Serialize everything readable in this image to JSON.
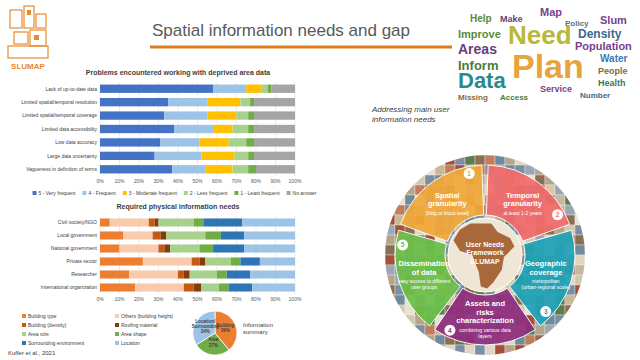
{
  "slide": {
    "title": "Spatial information needs and gap",
    "logo": "SLUMAP",
    "citation": "Kuffer et al., 2021"
  },
  "word_cloud": {
    "words": [
      {
        "text": "Plan",
        "weight": 34,
        "color": "#e8a33d"
      },
      {
        "text": "Need",
        "weight": 26,
        "color": "#b8b83a"
      },
      {
        "text": "Data",
        "weight": 22,
        "color": "#2a8a8a"
      },
      {
        "text": "Population",
        "weight": 11,
        "color": "#7b3f8c"
      },
      {
        "text": "Areas",
        "weight": 14,
        "color": "#6a3d7a"
      },
      {
        "text": "Inform",
        "weight": 13,
        "color": "#4d7a3a"
      },
      {
        "text": "Improve",
        "weight": 11,
        "color": "#5b8a3c"
      },
      {
        "text": "Density",
        "weight": 12,
        "color": "#3a6a8c"
      },
      {
        "text": "Slum",
        "weight": 11,
        "color": "#7b3f8c"
      },
      {
        "text": "Map",
        "weight": 11,
        "color": "#7b3f8c"
      },
      {
        "text": "Water",
        "weight": 10,
        "color": "#3a7ab5"
      },
      {
        "text": "People",
        "weight": 9,
        "color": "#8a6a3a"
      },
      {
        "text": "Health",
        "weight": 9,
        "color": "#3a7a5a"
      },
      {
        "text": "Service",
        "weight": 9,
        "color": "#7b3f8c"
      },
      {
        "text": "Help",
        "weight": 10,
        "color": "#5b8a3c"
      },
      {
        "text": "Make",
        "weight": 9,
        "color": "#6a3d7a"
      },
      {
        "text": "Policy",
        "weight": 8,
        "color": "#4a7a8c"
      },
      {
        "text": "Number",
        "weight": 8,
        "color": "#3a6a8c"
      },
      {
        "text": "Missing",
        "weight": 8,
        "color": "#8a6a3a"
      },
      {
        "text": "Access",
        "weight": 8,
        "color": "#4d7a3a"
      }
    ]
  },
  "framework": {
    "title": "Addressing main user information needs",
    "center": "User Needs Framework SLUMAP",
    "items": [
      {
        "number": 1,
        "label": "Spatial granularity",
        "detail": "(bldg or block level)",
        "color": "#f2a93b"
      },
      {
        "number": 2,
        "label": "Temporal granularity",
        "detail": "at least 1-2 years",
        "color": "#f26b6b"
      },
      {
        "number": 3,
        "label": "Geographic coverage",
        "detail": "metropolitan (urban-regional scale)",
        "color": "#1fa3b7"
      },
      {
        "number": 4,
        "label": "Assets and risks characterization",
        "detail": "combining various data layers",
        "color": "#8e2e7e"
      },
      {
        "number": 5,
        "label": "Dissemination of data",
        "detail": "easy access to different user groups",
        "color": "#6cc04a"
      }
    ]
  },
  "chart_data": [
    {
      "type": "bar",
      "orientation": "horizontal",
      "stacked": true,
      "grid": true,
      "legend": "bottom",
      "title": "Problems encountered working with deprived area data",
      "categories": [
        "Lack of up-to-date data",
        "Limited spatial/temporal resolution",
        "Limited spatial/temporal coverage",
        "Limited data accessibility",
        "Low data accuracy",
        "Large data uncertainty",
        "Vagueness in definition of terms"
      ],
      "series": [
        {
          "name": "5 - Very frequent",
          "color": "#4472c4",
          "values": [
            58,
            35,
            33,
            38,
            31,
            28,
            37
          ]
        },
        {
          "name": "4 - Frequent",
          "color": "#9dc3e6",
          "values": [
            17,
            20,
            22,
            20,
            20,
            24,
            17
          ]
        },
        {
          "name": "3 - Moderate frequent",
          "color": "#ffc000",
          "values": [
            8,
            17,
            15,
            10,
            15,
            17,
            14
          ]
        },
        {
          "name": "2 - Less frequent",
          "color": "#a9d18e",
          "values": [
            3,
            5,
            6,
            8,
            9,
            7,
            8
          ]
        },
        {
          "name": "1 - Least frequent",
          "color": "#70ad47",
          "values": [
            2,
            2,
            3,
            3,
            4,
            3,
            4
          ]
        },
        {
          "name": "No answer",
          "color": "#a5a5a5",
          "values": [
            12,
            21,
            21,
            21,
            21,
            21,
            20
          ]
        }
      ],
      "xlim": [
        0,
        100
      ],
      "xticks": [
        {
          "value": 0,
          "label": "0%"
        },
        {
          "value": 10,
          "label": "10%"
        },
        {
          "value": 20,
          "label": "20%"
        },
        {
          "value": 30,
          "label": "30%"
        },
        {
          "value": 40,
          "label": "40%"
        },
        {
          "value": 50,
          "label": "50%"
        },
        {
          "value": 60,
          "label": "60%"
        },
        {
          "value": 70,
          "label": "70%"
        },
        {
          "value": 80,
          "label": "80%"
        },
        {
          "value": 90,
          "label": "90%"
        },
        {
          "value": 100,
          "label": "100%"
        }
      ]
    },
    {
      "type": "bar",
      "orientation": "horizontal",
      "stacked": true,
      "grid": true,
      "legend": "bottom",
      "title": "Required physical information needs",
      "categories": [
        "Civil society/NGO",
        "Local government",
        "National government",
        "Private sector",
        "Researcher",
        "International organization"
      ],
      "series": [
        {
          "name": "Building type",
          "color": "#ed7d31",
          "values": [
            5,
            12,
            10,
            22,
            15,
            18
          ]
        },
        {
          "name": "Others (building height)",
          "color": "#f8cbad",
          "values": [
            20,
            15,
            20,
            25,
            25,
            25
          ]
        },
        {
          "name": "Building (density)",
          "color": "#c55a11",
          "values": [
            3,
            4,
            3,
            4,
            3,
            5
          ]
        },
        {
          "name": "Roofing material",
          "color": "#843c0c",
          "values": [
            2,
            3,
            3,
            3,
            3,
            4
          ]
        },
        {
          "name": "Area size",
          "color": "#a9d18e",
          "values": [
            18,
            20,
            15,
            13,
            14,
            9
          ]
        },
        {
          "name": "Area shape",
          "color": "#70ad47",
          "values": [
            5,
            8,
            7,
            5,
            5,
            5
          ]
        },
        {
          "name": "Surrounding environment",
          "color": "#2e75b6",
          "values": [
            20,
            12,
            16,
            10,
            12,
            12
          ]
        },
        {
          "name": "Location",
          "color": "#9dc3e6",
          "values": [
            27,
            26,
            26,
            18,
            23,
            22
          ]
        }
      ],
      "xlim": [
        0,
        100
      ],
      "xticks": [
        {
          "value": 0,
          "label": "0%"
        },
        {
          "value": 10,
          "label": "10%"
        },
        {
          "value": 20,
          "label": "20%"
        },
        {
          "value": 30,
          "label": "30%"
        },
        {
          "value": 40,
          "label": "40%"
        },
        {
          "value": 50,
          "label": "50%"
        },
        {
          "value": 60,
          "label": "60%"
        },
        {
          "value": 70,
          "label": "70%"
        },
        {
          "value": 80,
          "label": "80%"
        },
        {
          "value": 90,
          "label": "90%"
        },
        {
          "value": 100,
          "label": "100%"
        }
      ]
    },
    {
      "type": "pie",
      "title": "Information summary",
      "data_labels": true,
      "categories": [
        "Building",
        "Area",
        "Location/Surrounding"
      ],
      "values": [
        39,
        27,
        34
      ],
      "value_labels": [
        "39%",
        "27%",
        "34%"
      ],
      "colors": [
        "#ed7d31",
        "#70ad47",
        "#9dc3e6"
      ]
    }
  ]
}
